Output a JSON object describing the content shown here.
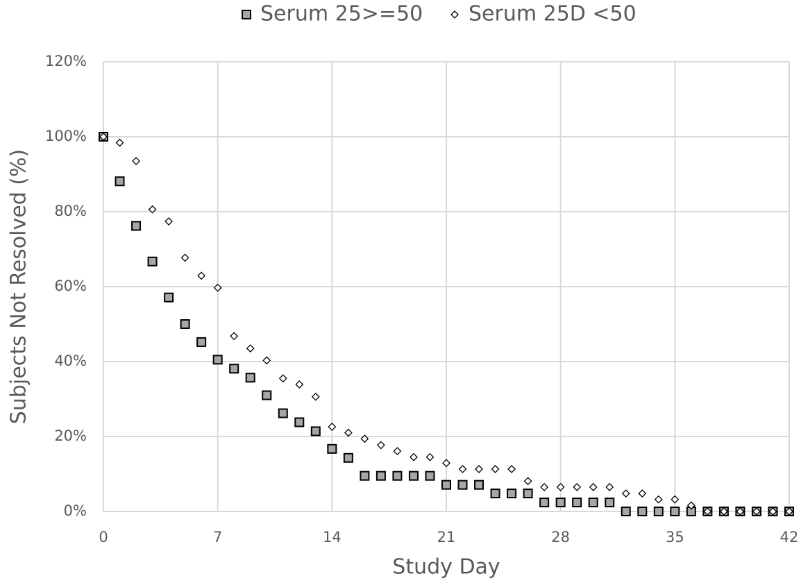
{
  "chart_data": {
    "type": "scatter",
    "x_label": "Study Day",
    "y_label": "Subjects Not Resolved (%)",
    "x": [
      0,
      1,
      2,
      3,
      4,
      5,
      6,
      7,
      8,
      9,
      10,
      11,
      12,
      13,
      14,
      15,
      16,
      17,
      18,
      19,
      20,
      21,
      22,
      23,
      24,
      25,
      26,
      27,
      28,
      29,
      30,
      31,
      32,
      33,
      34,
      35,
      36,
      37,
      38,
      39,
      40,
      41,
      42
    ],
    "series": [
      {
        "name": "Serum 25>=50",
        "color": "#a6a6a6",
        "marker": "square",
        "values": [
          100,
          88.1,
          76.2,
          66.7,
          57.1,
          50,
          45.2,
          40.5,
          38.1,
          35.7,
          31,
          26.2,
          23.8,
          21.4,
          16.7,
          14.3,
          9.5,
          9.5,
          9.5,
          9.5,
          9.5,
          7.1,
          7.1,
          7.1,
          4.8,
          4.8,
          4.8,
          2.4,
          2.4,
          2.4,
          2.4,
          2.4,
          0,
          0,
          0,
          0,
          0,
          0,
          0,
          0,
          0,
          0,
          0
        ]
      },
      {
        "name": "Serum 25D <50",
        "color": "#ffffff",
        "marker": "diamond",
        "values": [
          100,
          98.4,
          93.5,
          80.6,
          77.4,
          67.7,
          62.9,
          59.7,
          46.8,
          43.5,
          40.3,
          35.5,
          33.9,
          30.6,
          22.6,
          21,
          19.4,
          17.7,
          16.1,
          14.5,
          14.5,
          12.9,
          11.3,
          11.3,
          11.3,
          11.3,
          8.1,
          6.5,
          6.5,
          6.5,
          6.5,
          6.5,
          4.8,
          4.8,
          3.2,
          3.2,
          1.6,
          0,
          0,
          0,
          0,
          0,
          0
        ]
      }
    ],
    "xlim": [
      0,
      42
    ],
    "xticks": [
      0,
      7,
      14,
      21,
      28,
      35,
      42
    ],
    "ylim": [
      0,
      120
    ],
    "yticks": [
      {
        "value": 0,
        "label": "0%"
      },
      {
        "value": 20,
        "label": "20%"
      },
      {
        "value": 40,
        "label": "40%"
      },
      {
        "value": 60,
        "label": "60%"
      },
      {
        "value": 80,
        "label": "80%"
      },
      {
        "value": 100,
        "label": "100%"
      },
      {
        "value": 120,
        "label": "120%"
      }
    ],
    "grid": true,
    "legend": "top"
  }
}
